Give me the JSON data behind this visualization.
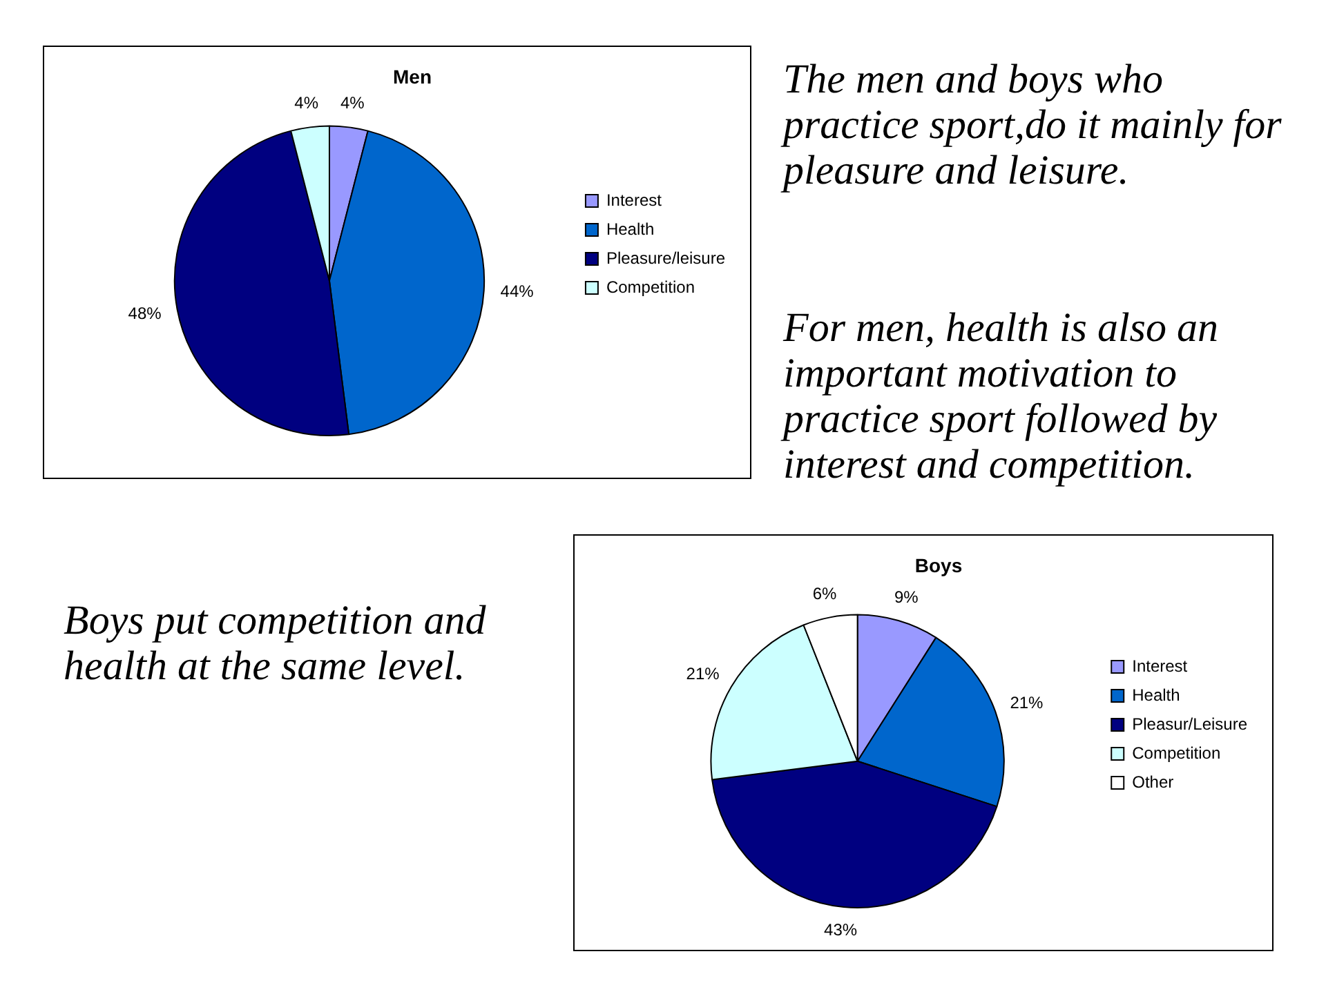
{
  "chart_data": [
    {
      "type": "pie",
      "title": "Men",
      "categories": [
        "Interest",
        "Health",
        "Pleasure/leisure",
        "Competition"
      ],
      "values": [
        4,
        44,
        48,
        4
      ],
      "colors": [
        "#9999ff",
        "#0066cc",
        "#000080",
        "#ccffff"
      ],
      "value_labels": [
        "4%",
        "44%",
        "48%",
        "4%"
      ],
      "legend": "right",
      "annotations": [
        "The men and boys who practice sport,do it mainly for pleasure and leisure.",
        "For men, health is also an important motivation to practice sport followed by interest and competition."
      ]
    },
    {
      "type": "pie",
      "title": "Boys",
      "categories": [
        "Interest",
        "Health",
        "Pleasur/Leisure",
        "Competition",
        "Other"
      ],
      "values": [
        9,
        21,
        43,
        21,
        6
      ],
      "colors": [
        "#9999ff",
        "#0066cc",
        "#000080",
        "#ccffff",
        "#ffffff"
      ],
      "value_labels": [
        "9%",
        "21%",
        "43%",
        "21%",
        "6%"
      ],
      "legend": "right",
      "annotations": [
        "Boys put competition and health at the same level."
      ]
    }
  ]
}
